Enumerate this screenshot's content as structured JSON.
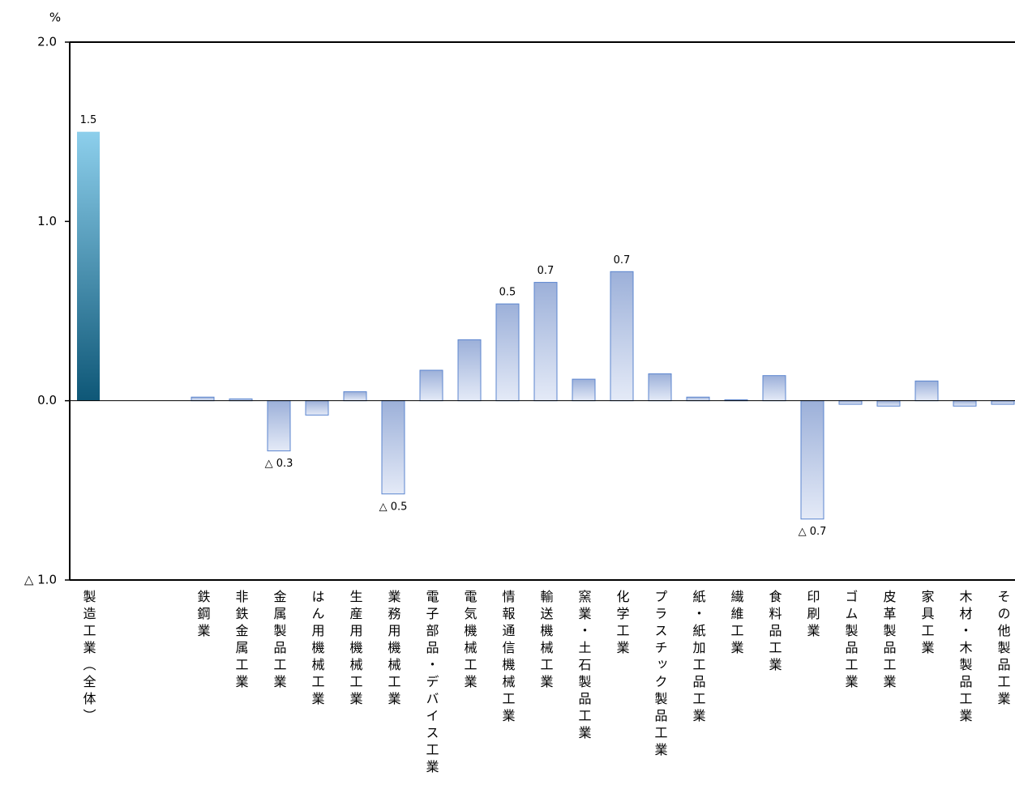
{
  "chart_data": {
    "type": "bar",
    "y_unit": "%",
    "categories": [
      "製造工業（全体）",
      null,
      null,
      "鉄鋼業",
      "非鉄金属工業",
      "金属製品工業",
      "はん用機械工業",
      "生産用機械工業",
      "業務用機械工業",
      "電子部品・デバイス工業",
      "電気機械工業",
      "情報通信機械工業",
      "輸送機械工業",
      "窯業・土石製品工業",
      "化学工業",
      "プラスチック製品工業",
      "紙・紙加工品工業",
      "繊維工業",
      "食料品工業",
      "印刷業",
      "ゴム製品工業",
      "皮革製品工業",
      "家具工業",
      "木材・木製品工業",
      "その他製品工業"
    ],
    "values": [
      1.5,
      null,
      null,
      0.02,
      0.01,
      -0.28,
      -0.08,
      0.05,
      -0.52,
      0.17,
      0.34,
      0.54,
      0.66,
      0.12,
      0.72,
      0.15,
      0.02,
      0.005,
      0.14,
      -0.66,
      -0.02,
      -0.03,
      0.11,
      -0.03,
      -0.02
    ],
    "value_labels": [
      "1.5",
      null,
      null,
      null,
      null,
      "△ 0.3",
      null,
      null,
      "△ 0.5",
      null,
      null,
      "0.5",
      "0.7",
      null,
      "0.7",
      null,
      null,
      null,
      null,
      "△ 0.7",
      null,
      null,
      null,
      null,
      null
    ],
    "colors": [
      "#1a9fd8",
      null,
      null,
      "#a4b9e4",
      "#a4b9e4",
      "#a4b9e4",
      "#a4b9e4",
      "#a4b9e4",
      "#a4b9e4",
      "#a4b9e4",
      "#a4b9e4",
      "#a4b9e4",
      "#a4b9e4",
      "#a4b9e4",
      "#a4b9e4",
      "#a4b9e4",
      "#a4b9e4",
      "#a4b9e4",
      "#a4b9e4",
      "#a4b9e4",
      "#a4b9e4",
      "#a4b9e4",
      "#a4b9e4",
      "#a4b9e4",
      "#a4b9e4"
    ],
    "ylim": [
      -1.0,
      2.0
    ],
    "yticks": [
      {
        "value": -1.0,
        "label": "△ 1.0"
      },
      {
        "value": 0,
        "label": "0.0"
      },
      {
        "value": 1.0,
        "label": "1.0"
      },
      {
        "value": 2.0,
        "label": "2.0"
      }
    ],
    "grid": false
  }
}
